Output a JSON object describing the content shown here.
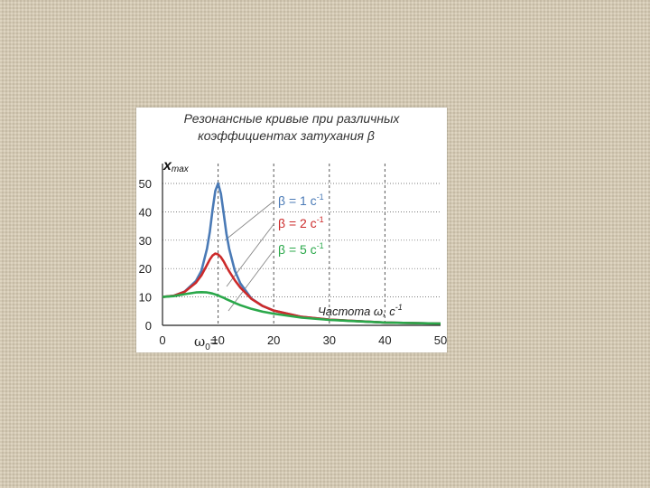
{
  "chart_data": {
    "type": "line",
    "title_line1": "Резонансные кривые при различных",
    "title_line2": "коэффициентах затухания β",
    "ylabel_main": "x",
    "ylabel_sub": "max",
    "xlabel_main": "Частота ω, с",
    "xlabel_sup": "-1",
    "omega0_label": "ω",
    "omega0_sub": "0",
    "omega0_eq": "=",
    "xlim": [
      0,
      50
    ],
    "ylim": [
      0,
      50
    ],
    "xticks": [
      "0",
      "10",
      "20",
      "30",
      "40",
      "50"
    ],
    "yticks": [
      "0",
      "10",
      "20",
      "30",
      "40",
      "50"
    ],
    "x_grid_dashed": [
      10,
      20,
      30,
      40
    ],
    "y_grid_dotted": [
      10,
      20,
      30,
      40,
      50
    ],
    "x": [
      0,
      2,
      4,
      6,
      7,
      8,
      8.5,
      9,
      9.5,
      10,
      10.5,
      11,
      11.5,
      12,
      13,
      14,
      16,
      18,
      20,
      25,
      30,
      40,
      50
    ],
    "series": [
      {
        "name": "β = 1 с",
        "sup": "-1",
        "color": "#4a7ab6",
        "values": [
          10,
          10.4,
          11.9,
          15.6,
          19.2,
          27,
          32.9,
          40.6,
          47.4,
          50,
          46.4,
          39.4,
          32.3,
          26.9,
          19.3,
          14.8,
          9.4,
          6.8,
          5.2,
          3.0,
          2.0,
          1.0,
          0.6
        ]
      },
      {
        "name": "β = 2 с",
        "sup": "-1",
        "color": "#cc2a2a",
        "values": [
          10,
          10.4,
          11.8,
          15,
          17.6,
          21.3,
          23.2,
          24.6,
          25.3,
          25,
          24,
          22.5,
          20.7,
          19,
          15.9,
          13.3,
          9.3,
          6.8,
          5.2,
          3.0,
          2.0,
          1.0,
          0.6
        ]
      },
      {
        "name": "β = 5 с",
        "sup": "-1",
        "color": "#2aa84a",
        "values": [
          10,
          10.3,
          11,
          11.6,
          11.7,
          11.6,
          11.4,
          11.2,
          10.9,
          10.5,
          10.1,
          9.7,
          9.2,
          8.8,
          7.9,
          7.1,
          5.8,
          4.8,
          4.1,
          2.7,
          1.9,
          1.0,
          0.6
        ]
      }
    ]
  }
}
